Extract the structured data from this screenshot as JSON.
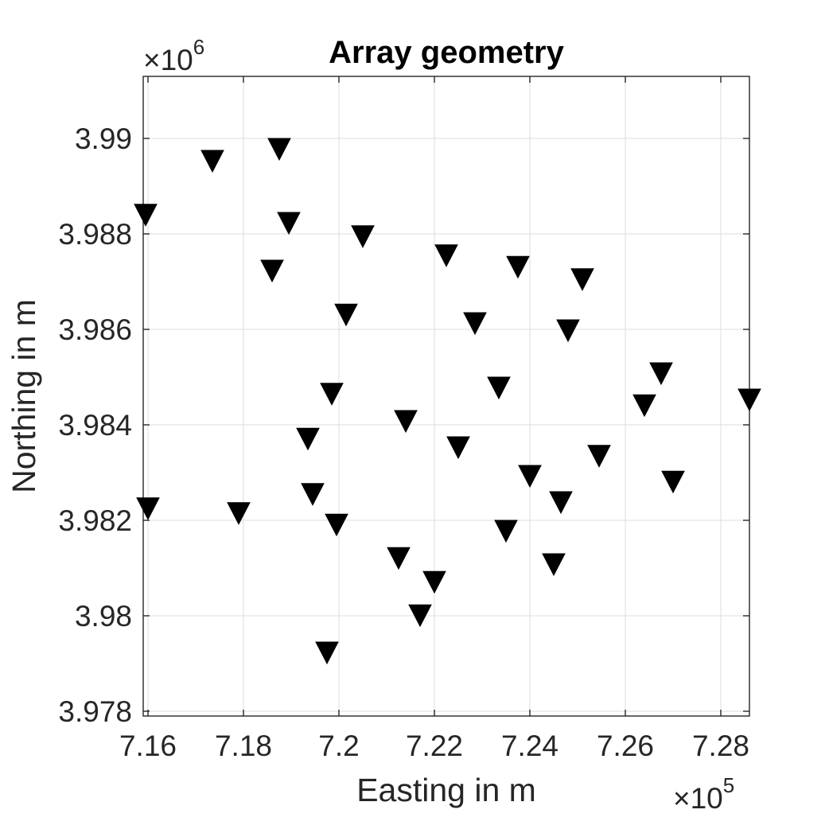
{
  "chart_data": {
    "type": "scatter",
    "title": "Array geometry",
    "xlabel": "Easting in m",
    "ylabel": "Northing in m",
    "x_exponent": {
      "base": "×10",
      "power": "5"
    },
    "y_exponent": {
      "base": "×10",
      "power": "6"
    },
    "xlim": [
      7.159,
      7.286
    ],
    "ylim": [
      3.9779,
      3.9913
    ],
    "x_scale": 100000,
    "y_scale": 1000000,
    "x_ticks": [
      7.16,
      7.18,
      7.2,
      7.22,
      7.24,
      7.26,
      7.28
    ],
    "x_tick_labels": [
      "7.16",
      "7.18",
      "7.2",
      "7.22",
      "7.24",
      "7.26",
      "7.28"
    ],
    "y_ticks": [
      3.978,
      3.98,
      3.982,
      3.984,
      3.986,
      3.988,
      3.99
    ],
    "y_tick_labels": [
      "3.978",
      "3.98",
      "3.982",
      "3.984",
      "3.986",
      "3.988",
      "3.99"
    ],
    "grid": true,
    "marker": "triangle-down",
    "marker_color": "#000000",
    "points": [
      {
        "x": 7.1595,
        "y": 3.98842
      },
      {
        "x": 7.1735,
        "y": 3.98955
      },
      {
        "x": 7.1875,
        "y": 3.9898
      },
      {
        "x": 7.1895,
        "y": 3.98825
      },
      {
        "x": 7.186,
        "y": 3.98725
      },
      {
        "x": 7.205,
        "y": 3.98797
      },
      {
        "x": 7.2015,
        "y": 3.98633
      },
      {
        "x": 7.2225,
        "y": 3.98757
      },
      {
        "x": 7.2375,
        "y": 3.98733
      },
      {
        "x": 7.251,
        "y": 3.98707
      },
      {
        "x": 7.2285,
        "y": 3.98615
      },
      {
        "x": 7.248,
        "y": 3.986
      },
      {
        "x": 7.2675,
        "y": 3.9851
      },
      {
        "x": 7.264,
        "y": 3.98443
      },
      {
        "x": 7.286,
        "y": 3.98455
      },
      {
        "x": 7.2335,
        "y": 3.9848
      },
      {
        "x": 7.1985,
        "y": 3.98467
      },
      {
        "x": 7.214,
        "y": 3.9841
      },
      {
        "x": 7.1935,
        "y": 3.98373
      },
      {
        "x": 7.225,
        "y": 3.98355
      },
      {
        "x": 7.2545,
        "y": 3.98337
      },
      {
        "x": 7.24,
        "y": 3.98295
      },
      {
        "x": 7.27,
        "y": 3.98283
      },
      {
        "x": 7.1945,
        "y": 3.98257
      },
      {
        "x": 7.2465,
        "y": 3.9824
      },
      {
        "x": 7.16,
        "y": 3.98227
      },
      {
        "x": 7.179,
        "y": 3.98217
      },
      {
        "x": 7.1995,
        "y": 3.98193
      },
      {
        "x": 7.235,
        "y": 3.9818
      },
      {
        "x": 7.2125,
        "y": 3.98123
      },
      {
        "x": 7.245,
        "y": 3.9811
      },
      {
        "x": 7.22,
        "y": 3.98073
      },
      {
        "x": 7.217,
        "y": 3.98003
      },
      {
        "x": 7.1975,
        "y": 3.97925
      }
    ]
  }
}
